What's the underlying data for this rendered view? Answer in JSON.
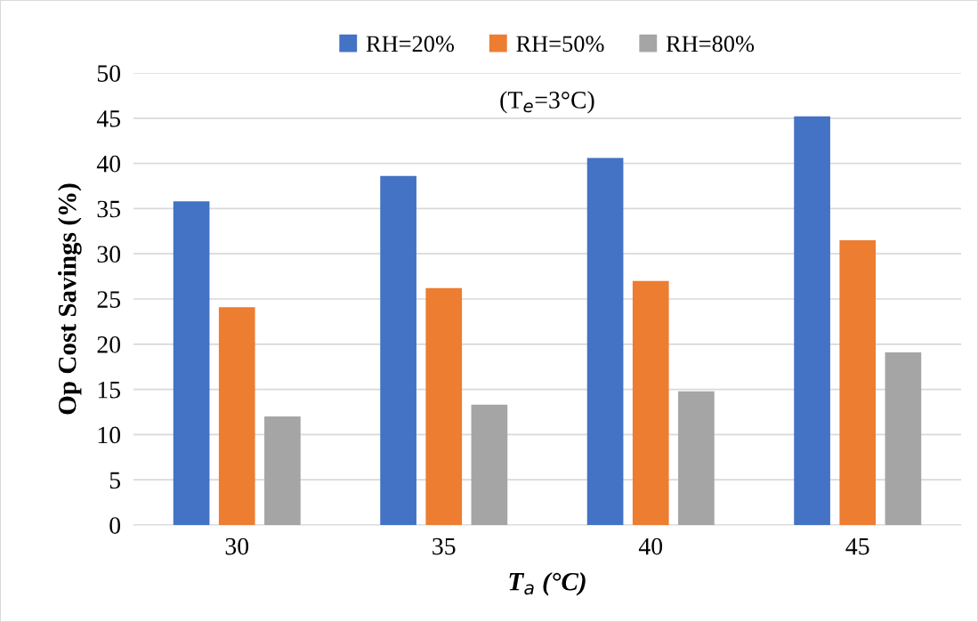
{
  "chart_data": {
    "type": "bar",
    "categories": [
      "30",
      "35",
      "40",
      "45"
    ],
    "series": [
      {
        "name": "RH=20%",
        "color": "#4472c4",
        "values": [
          35.8,
          38.6,
          40.6,
          45.2
        ]
      },
      {
        "name": "RH=50%",
        "color": "#ed7d31",
        "values": [
          24.1,
          26.2,
          27.0,
          31.5
        ]
      },
      {
        "name": "RH=80%",
        "color": "#a5a5a5",
        "values": [
          12.0,
          13.3,
          14.8,
          19.1
        ]
      }
    ],
    "xlabel": "T$_{a}$ (°C)",
    "ylabel": "Op Cost Savings (%)",
    "annotations": [
      "(T$_{e}$=3°C)"
    ],
    "ylim": [
      0,
      50
    ],
    "yticks": [
      0,
      5,
      10,
      15,
      20,
      25,
      30,
      35,
      40,
      45,
      50
    ],
    "grid": "y",
    "legend": "top"
  }
}
